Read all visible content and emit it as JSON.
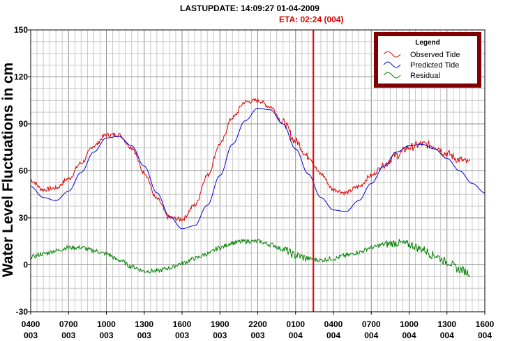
{
  "header": {
    "last_update": "LASTUPDATE: 14:09:27  01-04-2009",
    "eta": "ETA: 02:24 (004)"
  },
  "chart_data": {
    "type": "line",
    "ylabel": "Water Level Fluctuations in cm",
    "ylim": [
      -30,
      150
    ],
    "yticks": [
      -30,
      0,
      30,
      60,
      90,
      120,
      150
    ],
    "xlim_hours": [
      4,
      40
    ],
    "xtick_labels": [
      [
        "0400",
        "003"
      ],
      [
        "0700",
        "003"
      ],
      [
        "1000",
        "003"
      ],
      [
        "1300",
        "003"
      ],
      [
        "1600",
        "003"
      ],
      [
        "1900",
        "003"
      ],
      [
        "2200",
        "003"
      ],
      [
        "0100",
        "004"
      ],
      [
        "0400",
        "004"
      ],
      [
        "0700",
        "004"
      ],
      [
        "1000",
        "004"
      ],
      [
        "1300",
        "004"
      ],
      [
        "1600",
        "004"
      ]
    ],
    "grid": true,
    "legend": {
      "title": "Legend",
      "position": "top-right"
    },
    "marker": {
      "label": "ETA 02:24 (004)",
      "x_hours": 26.4,
      "color": "#ff0000"
    },
    "x_units": "hours since 00:00 day 003",
    "series": [
      {
        "name": "Observed Tide",
        "color": "#dd0000",
        "noisy": true,
        "x": [
          4,
          5,
          6,
          7,
          8,
          9,
          10,
          11,
          12,
          13,
          14,
          15,
          16,
          17,
          18,
          19,
          20,
          21,
          22,
          23,
          24,
          25,
          26,
          27,
          28,
          29,
          30,
          31,
          32,
          33,
          34,
          35,
          36,
          37,
          38,
          38.8
        ],
        "y": [
          54,
          48,
          49,
          55,
          65,
          76,
          83,
          83,
          75,
          59,
          42,
          30,
          29,
          38,
          57,
          77,
          94,
          104,
          105,
          101,
          91,
          79,
          69,
          58,
          48,
          46,
          50,
          57,
          64,
          70,
          75,
          77,
          76,
          71,
          67,
          65
        ]
      },
      {
        "name": "Predicted Tide",
        "color": "#0000dd",
        "noisy": false,
        "x": [
          4,
          5,
          6,
          7,
          8,
          9,
          10,
          11,
          12,
          13,
          14,
          15,
          16,
          17,
          18,
          19,
          20,
          21,
          22,
          23,
          24,
          25,
          26,
          27,
          28,
          29,
          30,
          31,
          32,
          33,
          34,
          35,
          36,
          37,
          38,
          39,
          40
        ],
        "y": [
          50,
          43,
          41,
          47,
          59,
          72,
          81,
          82,
          76,
          63,
          46,
          31,
          23,
          25,
          38,
          57,
          77,
          92,
          100,
          99,
          90,
          74,
          58,
          43,
          35,
          34,
          41,
          52,
          63,
          72,
          76,
          77,
          74,
          68,
          60,
          52,
          46
        ]
      },
      {
        "name": "Residual",
        "color": "#008000",
        "noisy": true,
        "x": [
          4,
          5,
          6,
          7,
          8,
          9,
          10,
          11,
          12,
          13,
          14,
          15,
          16,
          17,
          18,
          19,
          20,
          21,
          22,
          23,
          24,
          25,
          26,
          27,
          28,
          29,
          30,
          31,
          32,
          33,
          34,
          35,
          36,
          37,
          38,
          38.8
        ],
        "y": [
          5,
          7,
          9,
          11,
          11,
          9,
          7,
          3,
          -1,
          -4,
          -4,
          -2,
          1,
          4,
          7,
          11,
          14,
          15,
          15,
          13,
          10,
          6,
          4,
          3,
          4,
          6,
          8,
          11,
          13,
          14,
          13,
          10,
          6,
          2,
          -3,
          -5
        ]
      }
    ]
  }
}
